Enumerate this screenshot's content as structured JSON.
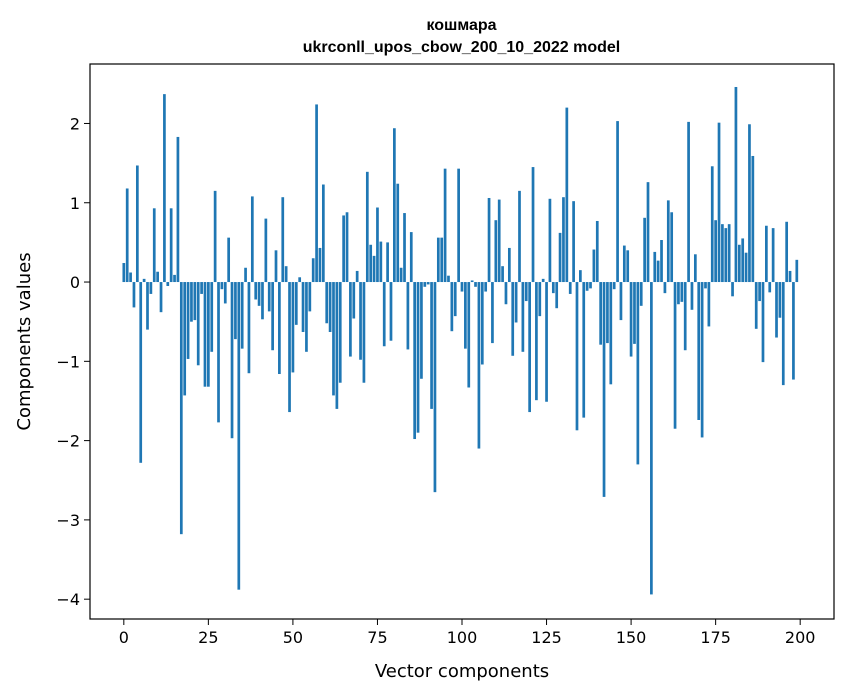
{
  "chart_data": {
    "type": "bar",
    "title": "кошмара",
    "subtitle": "ukrconll_upos_cbow_200_10_2022 model",
    "xlabel": "Vector components",
    "ylabel": "Components values",
    "xlim": [
      -10,
      210
    ],
    "ylim": [
      -4.25,
      2.75
    ],
    "xticks": [
      0,
      25,
      50,
      75,
      100,
      125,
      150,
      175,
      200
    ],
    "yticks": [
      -4,
      -3,
      -2,
      -1,
      0,
      1,
      2
    ],
    "ytick_labels": [
      "−4",
      "−3",
      "−2",
      "−1",
      "0",
      "1",
      "2"
    ],
    "grid": false,
    "bar_color": "#1f77b4",
    "x": [
      0,
      1,
      2,
      3,
      4,
      5,
      6,
      7,
      8,
      9,
      10,
      11,
      12,
      13,
      14,
      15,
      16,
      17,
      18,
      19,
      20,
      21,
      22,
      23,
      24,
      25,
      26,
      27,
      28,
      29,
      30,
      31,
      32,
      33,
      34,
      35,
      36,
      37,
      38,
      39,
      40,
      41,
      42,
      43,
      44,
      45,
      46,
      47,
      48,
      49,
      50,
      51,
      52,
      53,
      54,
      55,
      56,
      57,
      58,
      59,
      60,
      61,
      62,
      63,
      64,
      65,
      66,
      67,
      68,
      69,
      70,
      71,
      72,
      73,
      74,
      75,
      76,
      77,
      78,
      79,
      80,
      81,
      82,
      83,
      84,
      85,
      86,
      87,
      88,
      89,
      90,
      91,
      92,
      93,
      94,
      95,
      96,
      97,
      98,
      99,
      100,
      101,
      102,
      103,
      104,
      105,
      106,
      107,
      108,
      109,
      110,
      111,
      112,
      113,
      114,
      115,
      116,
      117,
      118,
      119,
      120,
      121,
      122,
      123,
      124,
      125,
      126,
      127,
      128,
      129,
      130,
      131,
      132,
      133,
      134,
      135,
      136,
      137,
      138,
      139,
      140,
      141,
      142,
      143,
      144,
      145,
      146,
      147,
      148,
      149,
      150,
      151,
      152,
      153,
      154,
      155,
      156,
      157,
      158,
      159,
      160,
      161,
      162,
      163,
      164,
      165,
      166,
      167,
      168,
      169,
      170,
      171,
      172,
      173,
      174,
      175,
      176,
      177,
      178,
      179,
      180,
      181,
      182,
      183,
      184,
      185,
      186,
      187,
      188,
      189,
      190,
      191,
      192,
      193,
      194,
      195,
      196,
      197,
      198,
      199
    ],
    "values": [
      0.24,
      1.18,
      0.12,
      -0.32,
      1.47,
      -2.28,
      0.04,
      -0.6,
      -0.15,
      0.93,
      0.13,
      -0.38,
      2.37,
      -0.05,
      0.93,
      0.09,
      1.83,
      -3.18,
      -1.43,
      -0.97,
      -0.5,
      -0.48,
      -1.05,
      -0.15,
      -1.32,
      -1.32,
      -0.88,
      1.15,
      -1.77,
      -0.09,
      -0.27,
      0.56,
      -1.97,
      -0.72,
      -3.88,
      -0.84,
      0.18,
      -1.15,
      1.08,
      -0.22,
      -0.3,
      -0.47,
      0.8,
      -0.37,
      -0.86,
      0.4,
      -1.16,
      1.07,
      0.2,
      -1.64,
      -1.14,
      -0.54,
      0.06,
      -0.63,
      -0.88,
      -0.37,
      0.3,
      2.24,
      0.43,
      1.23,
      -0.52,
      -0.63,
      -1.43,
      -1.6,
      -1.27,
      0.84,
      0.88,
      -0.94,
      -0.46,
      0.14,
      -0.98,
      -1.27,
      1.39,
      0.47,
      0.33,
      0.94,
      0.51,
      -0.81,
      0.5,
      -0.74,
      1.94,
      1.24,
      0.18,
      0.87,
      -0.85,
      0.63,
      -1.98,
      -1.9,
      -1.22,
      -0.06,
      -0.03,
      -1.6,
      -2.65,
      0.56,
      0.56,
      1.43,
      0.08,
      -0.62,
      -0.43,
      1.43,
      -0.12,
      -0.84,
      -1.33,
      0.02,
      -0.06,
      -2.1,
      -1.04,
      -0.12,
      1.06,
      -0.77,
      0.78,
      1.04,
      0.2,
      -0.28,
      0.43,
      -0.93,
      -0.51,
      1.15,
      -0.88,
      -0.24,
      -1.64,
      1.45,
      -1.49,
      -0.43,
      0.04,
      -1.51,
      1.05,
      -0.14,
      -0.33,
      0.62,
      1.07,
      2.2,
      -0.15,
      1.02,
      -1.87,
      0.15,
      -1.71,
      -0.11,
      -0.08,
      0.41,
      0.77,
      -0.79,
      -2.71,
      -0.77,
      -1.29,
      -0.09,
      2.03,
      -0.48,
      0.46,
      0.4,
      -0.94,
      -0.78,
      -2.3,
      -0.3,
      0.81,
      1.26,
      -3.94,
      0.38,
      0.27,
      0.53,
      -0.14,
      1.03,
      0.88,
      -1.85,
      -0.28,
      -0.25,
      -0.86,
      2.02,
      -0.35,
      0.35,
      -1.74,
      -1.96,
      -0.08,
      -0.56,
      1.46,
      0.78,
      2.01,
      0.73,
      0.68,
      0.73,
      -0.18,
      2.46,
      0.47,
      0.55,
      0.37,
      1.99,
      1.59,
      -0.59,
      -0.24,
      -1.01,
      0.71,
      -0.13,
      0.68,
      -0.7,
      -0.45,
      -1.3,
      0.76,
      0.14,
      -1.23,
      0.28
    ]
  }
}
